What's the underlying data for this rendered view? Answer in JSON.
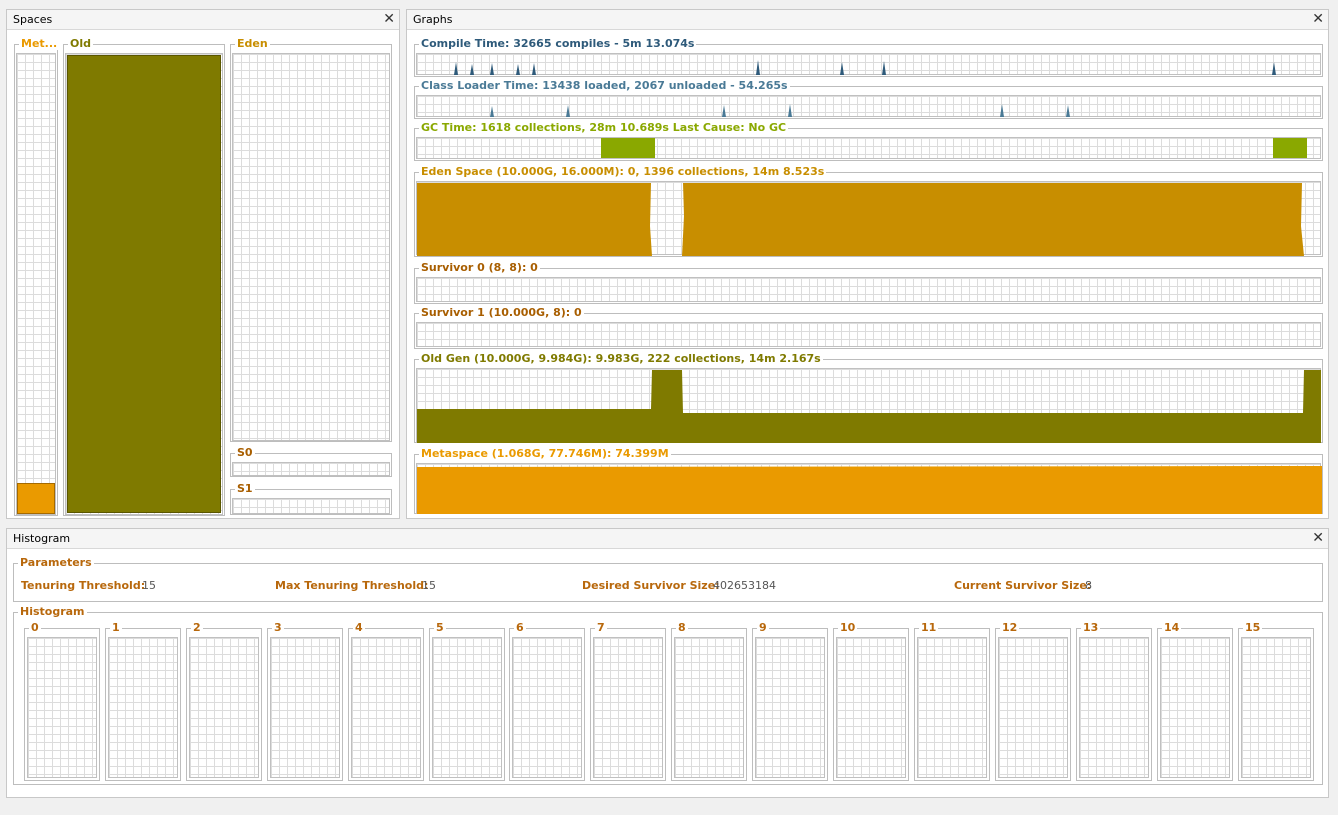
{
  "spaces": {
    "title": "Spaces",
    "metaspace_label": "Met...",
    "old_label": "Old",
    "eden_label": "Eden",
    "s0_label": "S0",
    "s1_label": "S1"
  },
  "graphs": {
    "title": "Graphs",
    "compile": "Compile Time: 32665 compiles - 5m 13.074s",
    "classloader": "Class Loader Time: 13438 loaded, 2067 unloaded - 54.265s",
    "gc": "GC Time: 1618 collections, 28m 10.689s  Last Cause: No GC",
    "eden": "Eden Space (10.000G, 16.000M): 0, 1396 collections, 14m 8.523s",
    "s0": "Survivor 0 (8, 8): 0",
    "s1": "Survivor 1 (10.000G, 8): 0",
    "oldgen": "Old Gen (10.000G, 9.984G): 9.983G, 222 collections, 14m 2.167s",
    "metaspace": "Metaspace (1.068G, 77.746M): 74.399M"
  },
  "histogram_panel": {
    "title": "Histogram",
    "params_title": "Parameters",
    "tenuring_label": "Tenuring Threshold:",
    "tenuring_value": "15",
    "max_tenuring_label": "Max Tenuring Threshold:",
    "max_tenuring_value": "15",
    "desired_label": "Desired Survivor Size:",
    "desired_value": "402653184",
    "current_label": "Current Survivor Size:",
    "current_value": "8",
    "histogram_title": "Histogram",
    "bins": [
      "0",
      "1",
      "2",
      "3",
      "4",
      "5",
      "6",
      "7",
      "8",
      "9",
      "10",
      "11",
      "12",
      "13",
      "14",
      "15"
    ]
  },
  "colors": {
    "compile": "#2e5a7a",
    "classloader": "#4a7a96",
    "gc": "#8aa800",
    "eden": "#c88e00",
    "survivor": "#a85e00",
    "oldgen": "#7f7a00",
    "metaspace": "#ea9a00",
    "param_label": "#b8680c"
  },
  "fill_levels": {
    "metaspace_space": 0.07,
    "old_space": 1.0,
    "eden_space": 0.0
  },
  "close_icon": "close-icon"
}
